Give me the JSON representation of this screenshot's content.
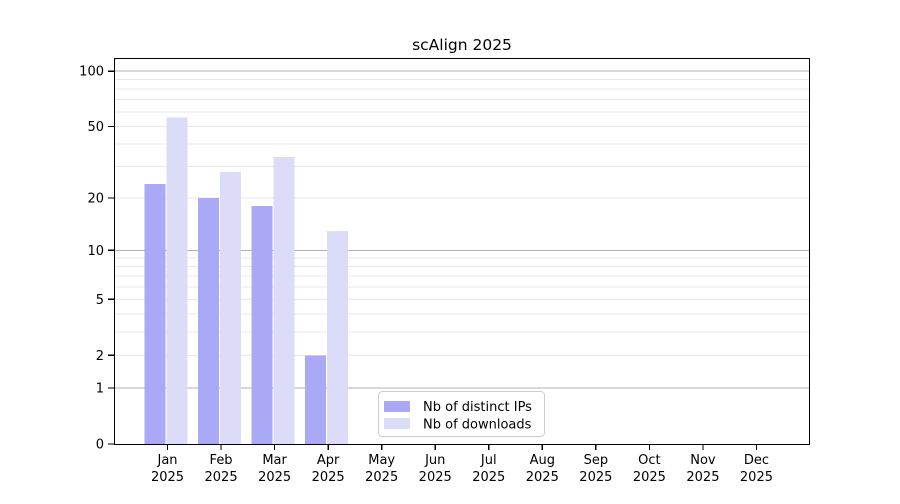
{
  "figure": {
    "background": "#ffffff"
  },
  "chart_data": {
    "type": "bar",
    "title": "scAlign 2025",
    "categories": [
      "Jan 2025",
      "Feb 2025",
      "Mar 2025",
      "Apr 2025",
      "May 2025",
      "Jun 2025",
      "Jul 2025",
      "Aug 2025",
      "Sep 2025",
      "Oct 2025",
      "Nov 2025",
      "Dec 2025"
    ],
    "series": [
      {
        "name": "Nb of distinct IPs",
        "color": "#a9a9f6",
        "values": [
          24,
          20,
          18,
          2,
          0,
          0,
          0,
          0,
          0,
          0,
          0,
          0
        ]
      },
      {
        "name": "Nb of downloads",
        "color": "#dcdcf9",
        "values": [
          56,
          28,
          34,
          13,
          0,
          0,
          0,
          0,
          0,
          0,
          0,
          0
        ]
      }
    ],
    "xlabel": "",
    "ylabel": "",
    "yscale": "log1p",
    "ylim": [
      0,
      118
    ],
    "yticks": [
      0,
      1,
      2,
      5,
      10,
      20,
      50,
      100
    ],
    "gridlines": {
      "on": true,
      "major": [
        1,
        10,
        100
      ],
      "minor": [
        2,
        3,
        4,
        5,
        6,
        7,
        8,
        9,
        20,
        30,
        40,
        50,
        60,
        70,
        80,
        90
      ],
      "major_color": "#b0b0b0",
      "minor_color": "#e9e9e9"
    },
    "legend": {
      "position": "lower-center"
    },
    "axis_color": "#000000"
  }
}
